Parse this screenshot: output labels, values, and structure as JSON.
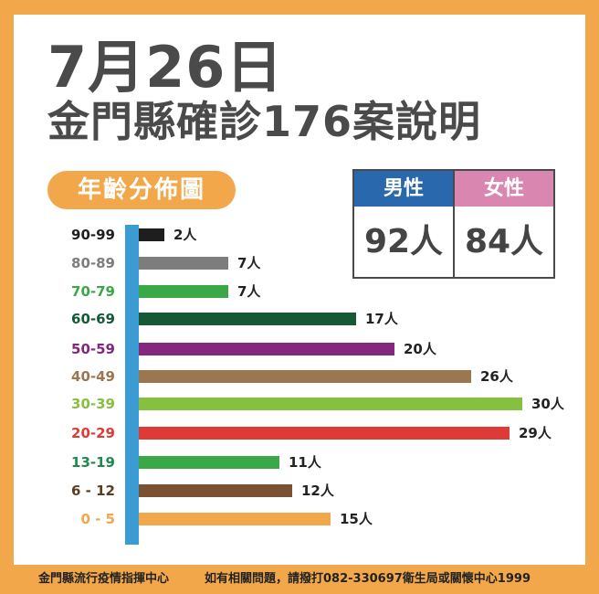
{
  "header": {
    "date": "7月26日",
    "subtitle": "金門縣確診176案說明"
  },
  "section_label": "年齡分佈圖",
  "gender": {
    "male": {
      "label": "男性",
      "value": "92人",
      "color": "#2a68ad"
    },
    "female": {
      "label": "女性",
      "value": "84人",
      "color": "#d987b0"
    }
  },
  "footer": {
    "org": "金門縣流行疫情指揮中心",
    "contact": "如有相關問題，請撥打082-330697衛生局或關懷中心1999"
  },
  "colors": {
    "frame": "#f2a74a",
    "axis": "#3a9cd2",
    "title": "#4a4a4a"
  },
  "chart_data": {
    "type": "bar",
    "orientation": "horizontal",
    "title": "年齡分佈圖",
    "xlabel": "",
    "ylabel": "",
    "unit": "人",
    "xlim": [
      0,
      30
    ],
    "grid": false,
    "legend": "none",
    "categories": [
      "90-99",
      "80-89",
      "70-79",
      "60-69",
      "50-59",
      "40-49",
      "30-39",
      "20-29",
      "13-19",
      "6 - 12",
      "0  -  5"
    ],
    "values": [
      2,
      7,
      7,
      17,
      20,
      26,
      30,
      29,
      11,
      12,
      15
    ],
    "value_labels": [
      "2人",
      "7人",
      "7人",
      "17人",
      "20人",
      "26人",
      "30人",
      "29人",
      "11人",
      "12人",
      "15人"
    ],
    "bar_colors": [
      "#1e1e1e",
      "#7d7d7d",
      "#3aa846",
      "#155a35",
      "#84287f",
      "#9c7650",
      "#86c03f",
      "#de3b36",
      "#3aa846",
      "#7a5233",
      "#f2a74a"
    ],
    "label_colors": [
      "#1e1e1e",
      "#7d7d7d",
      "#3aa846",
      "#155a35",
      "#84287f",
      "#9c7650",
      "#86c03f",
      "#de3b36",
      "#1f8a4c",
      "#5a3d22",
      "#f2a74a"
    ],
    "total": 176,
    "gender_split": {
      "男性": 92,
      "女性": 84
    }
  }
}
